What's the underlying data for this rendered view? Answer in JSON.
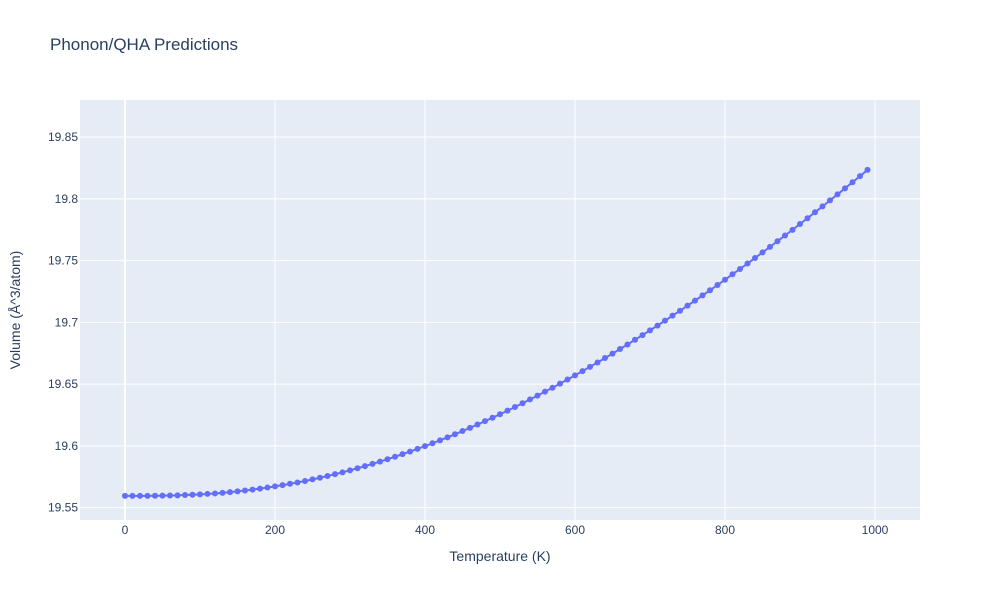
{
  "chart_data": {
    "type": "scatter",
    "mode": "lines+markers",
    "title": "Phonon/QHA Predictions",
    "xlabel": "Temperature (K)",
    "ylabel": "Volume (Å^3/atom)",
    "xlim": [
      -60,
      1060
    ],
    "ylim": [
      19.54,
      19.88
    ],
    "xticks": [
      0,
      200,
      400,
      600,
      800,
      1000
    ],
    "xtick_labels": [
      "0",
      "200",
      "400",
      "600",
      "800",
      "1000"
    ],
    "yticks": [
      19.55,
      19.6,
      19.65,
      19.7,
      19.75,
      19.8,
      19.85
    ],
    "ytick_labels": [
      "19.55",
      "19.6",
      "19.65",
      "19.7",
      "19.75",
      "19.8",
      "19.85"
    ],
    "grid": true,
    "colors": {
      "series": "#636efa",
      "plot_bg": "#e5ecf6",
      "grid": "#ffffff",
      "text": "#2a3f5f"
    },
    "series": [
      {
        "x": [
          0,
          10,
          20,
          30,
          40,
          50,
          60,
          70,
          80,
          90,
          100,
          110,
          120,
          130,
          140,
          150,
          160,
          170,
          180,
          190,
          200,
          210,
          220,
          230,
          240,
          250,
          260,
          270,
          280,
          290,
          300,
          310,
          320,
          330,
          340,
          350,
          360,
          370,
          380,
          390,
          400,
          410,
          420,
          430,
          440,
          450,
          460,
          470,
          480,
          490,
          500,
          510,
          520,
          530,
          540,
          550,
          560,
          570,
          580,
          590,
          600,
          610,
          620,
          630,
          640,
          650,
          660,
          670,
          680,
          690,
          700,
          710,
          720,
          730,
          740,
          750,
          760,
          770,
          780,
          790,
          800,
          810,
          820,
          830,
          840,
          850,
          860,
          870,
          880,
          890,
          900,
          910,
          920,
          930,
          940,
          950,
          960,
          970,
          980,
          990
        ],
        "values": [
          19.5595,
          19.5595,
          19.5595,
          19.5595,
          19.5596,
          19.5597,
          19.5598,
          19.5599,
          19.5602,
          19.5604,
          19.5607,
          19.5611,
          19.5615,
          19.562,
          19.5626,
          19.5632,
          19.5639,
          19.5646,
          19.5654,
          19.5663,
          19.5672,
          19.5682,
          19.5693,
          19.5704,
          19.5716,
          19.5729,
          19.5742,
          19.5756,
          19.5771,
          19.5786,
          19.5802,
          19.5819,
          19.5836,
          19.5854,
          19.5873,
          19.5892,
          19.5912,
          19.5933,
          19.5954,
          19.5976,
          19.5998,
          19.6021,
          19.6045,
          19.6069,
          19.6094,
          19.612,
          19.6146,
          19.6173,
          19.62,
          19.6228,
          19.6256,
          19.6285,
          19.6315,
          19.6345,
          19.6376,
          19.6407,
          19.6439,
          19.6471,
          19.6504,
          19.6537,
          19.6571,
          19.6605,
          19.664,
          19.6675,
          19.6711,
          19.6747,
          19.6784,
          19.6821,
          19.6859,
          19.6897,
          19.6935,
          19.6974,
          19.7014,
          19.7054,
          19.7094,
          19.7135,
          19.7176,
          19.7218,
          19.726,
          19.7302,
          19.7345,
          19.7389,
          19.7432,
          19.7476,
          19.7521,
          19.7566,
          19.7611,
          19.7657,
          19.7703,
          19.7749,
          19.7796,
          19.7843,
          19.7891,
          19.7939,
          19.7987,
          19.8036,
          19.8085,
          19.8134,
          19.8184,
          19.8234
        ]
      }
    ]
  }
}
